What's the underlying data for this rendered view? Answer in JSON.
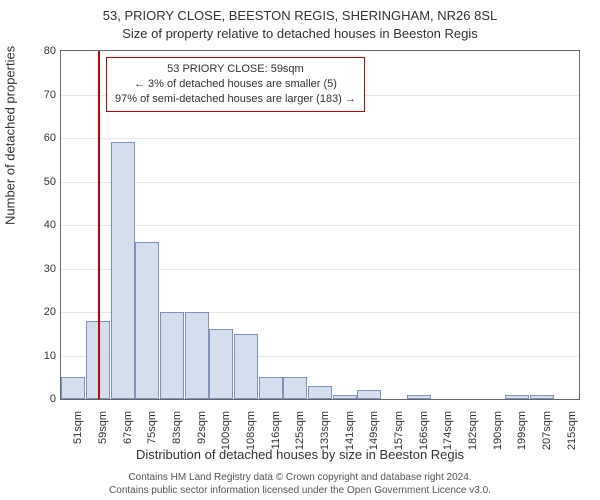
{
  "title_line_1": "53, PRIORY CLOSE, BEESTON REGIS, SHERINGHAM, NR26 8SL",
  "title_line_2": "Size of property relative to detached houses in Beeston Regis",
  "y_axis_label": "Number of detached properties",
  "x_axis_label": "Distribution of detached houses by size in Beeston Regis",
  "attribution_line_1": "Contains HM Land Registry data © Crown copyright and database right 2024.",
  "attribution_line_2": "Contains public sector information licensed under the Open Government Licence v3.0.",
  "chart": {
    "type": "histogram",
    "ylim": [
      0,
      80
    ],
    "ytick_step": 10,
    "y_ticks": [
      0,
      10,
      20,
      30,
      40,
      50,
      60,
      70,
      80
    ],
    "x_labels": [
      "51sqm",
      "59sqm",
      "67sqm",
      "75sqm",
      "83sqm",
      "92sqm",
      "100sqm",
      "108sqm",
      "116sqm",
      "125sqm",
      "133sqm",
      "141sqm",
      "149sqm",
      "157sqm",
      "166sqm",
      "174sqm",
      "182sqm",
      "190sqm",
      "199sqm",
      "207sqm",
      "215sqm"
    ],
    "bars": [
      {
        "label": "51sqm",
        "value": 5
      },
      {
        "label": "59sqm",
        "value": 18
      },
      {
        "label": "67sqm",
        "value": 59
      },
      {
        "label": "75sqm",
        "value": 36
      },
      {
        "label": "83sqm",
        "value": 20
      },
      {
        "label": "92sqm",
        "value": 20
      },
      {
        "label": "100sqm",
        "value": 16
      },
      {
        "label": "108sqm",
        "value": 15
      },
      {
        "label": "116sqm",
        "value": 5
      },
      {
        "label": "125sqm",
        "value": 5
      },
      {
        "label": "133sqm",
        "value": 3
      },
      {
        "label": "141sqm",
        "value": 1
      },
      {
        "label": "149sqm",
        "value": 2
      },
      {
        "label": "157sqm",
        "value": 0
      },
      {
        "label": "166sqm",
        "value": 1
      },
      {
        "label": "174sqm",
        "value": 0
      },
      {
        "label": "182sqm",
        "value": 0
      },
      {
        "label": "190sqm",
        "value": 0
      },
      {
        "label": "199sqm",
        "value": 1
      },
      {
        "label": "207sqm",
        "value": 1
      },
      {
        "label": "215sqm",
        "value": 0
      }
    ],
    "bar_fill": "#d5deef",
    "bar_border": "#7c93be",
    "grid_color": "#e6e6e6",
    "axis_color": "#666666",
    "background_color": "#ffffff",
    "marker": {
      "value": "59sqm",
      "fractional_index": 1.0,
      "color": "#cc0000"
    },
    "callout": {
      "border_color": "#cc0000",
      "lines": [
        "53 PRIORY CLOSE: 59sqm",
        "← 3% of detached houses are smaller (5)",
        "97% of semi-detached houses are larger (183) →"
      ]
    }
  }
}
